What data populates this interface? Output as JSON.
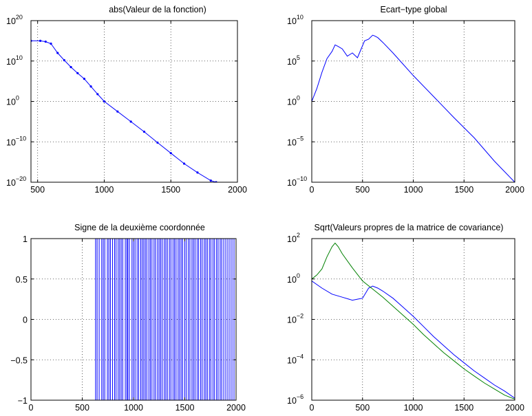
{
  "chart_data": [
    {
      "type": "line",
      "title": "abs(Valeur de la fonction)",
      "xlabel": "",
      "ylabel": "",
      "xlim": [
        450,
        2000
      ],
      "ylim": [
        1e-20,
        1e+20
      ],
      "yscale": "log",
      "xticks": [
        500,
        1000,
        1500,
        2000
      ],
      "xticklabels": [
        "500",
        "1000",
        "1500",
        "2000"
      ],
      "yticks": [
        1e-20,
        1e-10,
        1,
        10000000000.0,
        1e+20
      ],
      "yticklabels": [
        [
          "10",
          "−20"
        ],
        [
          "10",
          "−10"
        ],
        [
          "10",
          "0"
        ],
        [
          "10",
          "10"
        ],
        [
          "10",
          "20"
        ]
      ],
      "grid": true,
      "markers": true,
      "series": [
        {
          "color": "#0000ff",
          "x": [
            450,
            520,
            560,
            600,
            650,
            700,
            750,
            800,
            850,
            900,
            950,
            1000,
            1100,
            1200,
            1300,
            1400,
            1500,
            1600,
            1700,
            1800,
            1840
          ],
          "y_log10": [
            15,
            15,
            14.8,
            14.3,
            12,
            10.2,
            8.5,
            7,
            5.6,
            3.7,
            1.8,
            0,
            -2.5,
            -5,
            -7.5,
            -10.2,
            -12.8,
            -15.4,
            -17.6,
            -19.6,
            -20
          ]
        }
      ]
    },
    {
      "type": "line",
      "title": "Ecart−type global",
      "xlabel": "",
      "ylabel": "",
      "xlim": [
        0,
        2000
      ],
      "ylim": [
        1e-10,
        10000000000.0
      ],
      "yscale": "log",
      "xticks": [
        0,
        500,
        1000,
        1500,
        2000
      ],
      "xticklabels": [
        "0",
        "500",
        "1000",
        "1500",
        "2000"
      ],
      "yticks": [
        1e-10,
        1e-05,
        1,
        100000.0,
        10000000000.0
      ],
      "yticklabels": [
        [
          "10",
          "−10"
        ],
        [
          "10",
          "−5"
        ],
        [
          "10",
          "0"
        ],
        [
          "10",
          "5"
        ],
        [
          "10",
          "10"
        ]
      ],
      "grid": true,
      "series": [
        {
          "color": "#0000ff",
          "x": [
            0,
            50,
            100,
            150,
            200,
            230,
            260,
            300,
            350,
            400,
            450,
            480,
            520,
            560,
            600,
            620,
            650,
            700,
            800,
            900,
            1000,
            1200,
            1400,
            1600,
            1800,
            2000
          ],
          "y_log10": [
            0,
            1.6,
            3.6,
            5.3,
            6.2,
            7,
            6.8,
            6.5,
            5.6,
            6,
            5.4,
            6.3,
            7.5,
            7.7,
            8.2,
            8.1,
            7.9,
            7.3,
            6,
            4.6,
            3.2,
            0.6,
            -2,
            -4.5,
            -7.4,
            -10
          ]
        }
      ]
    },
    {
      "type": "line",
      "title": "Signe de la deuxième coordonnée",
      "xlabel": "",
      "ylabel": "",
      "xlim": [
        0,
        2000
      ],
      "ylim": [
        -1,
        1
      ],
      "xticks": [
        0,
        500,
        1000,
        1500,
        2000
      ],
      "xticklabels": [
        "0",
        "500",
        "1000",
        "1500",
        "2000"
      ],
      "yticks": [
        -1,
        -0.5,
        0,
        0.5,
        1
      ],
      "yticklabels": [
        "−1",
        "−0.5",
        "0",
        "0.5",
        "1"
      ],
      "grid": true,
      "series": [
        {
          "color": "#0000ff",
          "sign_changes_x": [
            630,
            645,
            665,
            690,
            705,
            720,
            745,
            760,
            775,
            795,
            815,
            830,
            850,
            865,
            880,
            895,
            920,
            935,
            945,
            960,
            985,
            1000,
            1015,
            1035,
            1050,
            1070,
            1085,
            1100,
            1115,
            1130,
            1150,
            1165,
            1180,
            1200,
            1215,
            1235,
            1250,
            1265,
            1280,
            1300,
            1315,
            1330,
            1350,
            1365,
            1385,
            1400,
            1415,
            1435,
            1450,
            1465,
            1480,
            1500,
            1515,
            1535,
            1550,
            1570,
            1585,
            1600,
            1620,
            1635,
            1655,
            1670,
            1690,
            1705,
            1720,
            1740,
            1755,
            1775,
            1790,
            1810,
            1825,
            1845,
            1860,
            1880,
            1900,
            1920,
            1940,
            1960,
            1980,
            2000
          ],
          "initial_value": 1
        }
      ]
    },
    {
      "type": "line",
      "title": "Sqrt(Valeurs propres de la matrice de covariance)",
      "xlabel": "",
      "ylabel": "",
      "xlim": [
        0,
        2000
      ],
      "ylim": [
        1e-06,
        100
      ],
      "yscale": "log",
      "xticks": [
        0,
        500,
        1000,
        1500,
        2000
      ],
      "xticklabels": [
        "0",
        "500",
        "1000",
        "1500",
        "2000"
      ],
      "yticks": [
        1e-06,
        0.0001,
        0.01,
        1,
        100
      ],
      "yticklabels": [
        [
          "10",
          "−6"
        ],
        [
          "10",
          "−4"
        ],
        [
          "10",
          "−2"
        ],
        [
          "10",
          "0"
        ],
        [
          "10",
          "2"
        ]
      ],
      "grid": true,
      "series": [
        {
          "color": "#0000ff",
          "x": [
            0,
            100,
            200,
            300,
            400,
            450,
            500,
            560,
            600,
            650,
            700,
            800,
            900,
            1000,
            1100,
            1200,
            1300,
            1400,
            1500,
            1600,
            1700,
            1800,
            1900,
            2000
          ],
          "y_log10": [
            -0.1,
            -0.45,
            -0.75,
            -0.9,
            -1.05,
            -1.0,
            -0.95,
            -0.45,
            -0.35,
            -0.45,
            -0.6,
            -0.95,
            -1.4,
            -1.85,
            -2.35,
            -2.85,
            -3.3,
            -3.75,
            -4.15,
            -4.55,
            -4.9,
            -5.25,
            -5.55,
            -5.9
          ]
        },
        {
          "color": "#008000",
          "x": [
            0,
            50,
            100,
            150,
            200,
            230,
            260,
            300,
            400,
            500,
            600,
            700,
            800,
            900,
            1000,
            1100,
            1200,
            1300,
            1400,
            1500,
            1600,
            1700,
            1800,
            1900,
            2000
          ],
          "y_log10": [
            0,
            0.2,
            0.5,
            1.1,
            1.6,
            1.78,
            1.6,
            1.25,
            0.55,
            -0.1,
            -0.5,
            -0.9,
            -1.35,
            -1.8,
            -2.25,
            -2.75,
            -3.2,
            -3.65,
            -4.05,
            -4.45,
            -4.8,
            -5.15,
            -5.45,
            -5.75,
            -5.95
          ]
        }
      ]
    }
  ]
}
